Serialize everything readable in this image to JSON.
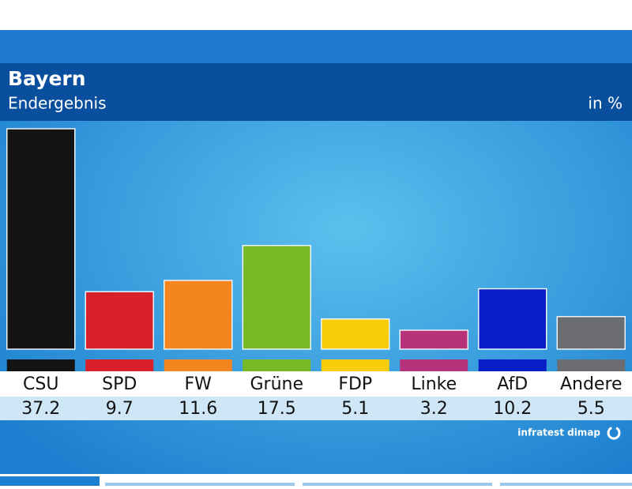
{
  "chart_data": {
    "type": "bar",
    "title": "Bayern",
    "subtitle": "Endergebnis",
    "unit": "in %",
    "source": "infratest dimap",
    "categories": [
      "CSU",
      "SPD",
      "FW",
      "Grüne",
      "FDP",
      "Linke",
      "AfD",
      "Andere"
    ],
    "values": [
      37.2,
      9.7,
      11.6,
      17.5,
      5.1,
      3.2,
      10.2,
      5.5
    ],
    "colors": [
      "#141414",
      "#d8202a",
      "#f5861f",
      "#78b928",
      "#f7cc0b",
      "#b8327a",
      "#0a1ec8",
      "#6b6d70"
    ]
  }
}
